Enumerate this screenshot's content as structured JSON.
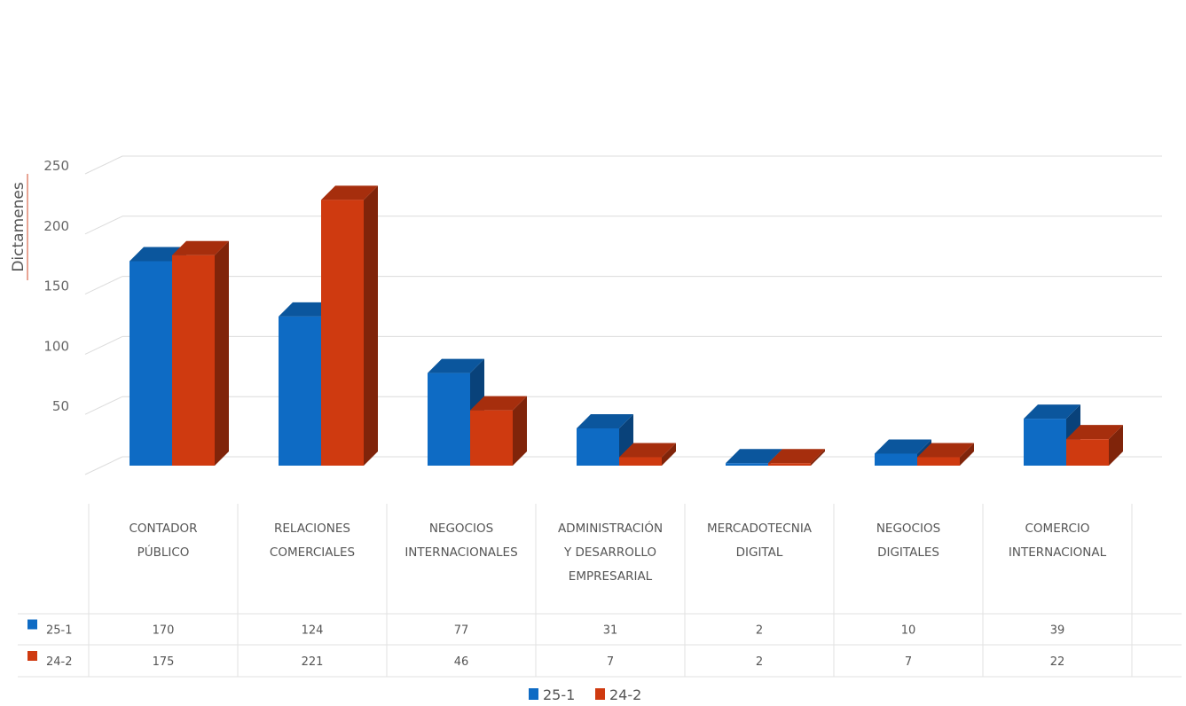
{
  "chart_data": {
    "type": "bar",
    "ylabel": "Dictamenes",
    "ylim": [
      0,
      250
    ],
    "yticks": [
      50,
      100,
      150,
      200,
      250
    ],
    "grid": true,
    "legend": "bottom",
    "categories": [
      [
        "CONTADOR",
        "PÚBLICO"
      ],
      [
        "RELACIONES",
        "COMERCIALES"
      ],
      [
        "NEGOCIOS",
        "INTERNACIONALES"
      ],
      [
        "ADMINISTRACIÓN",
        "Y DESARROLLO",
        "EMPRESARIAL"
      ],
      [
        "MERCADOTECNIA",
        "DIGITAL"
      ],
      [
        "NEGOCIOS",
        "DIGITALES"
      ],
      [
        "COMERCIO",
        "INTERNACIONAL"
      ]
    ],
    "series": [
      {
        "name": "25-1",
        "color": "#0e6bc4",
        "values": [
          170,
          124,
          77,
          31,
          2,
          10,
          39
        ]
      },
      {
        "name": "24-2",
        "color": "#cf3a10",
        "values": [
          175,
          221,
          46,
          7,
          2,
          7,
          22
        ]
      }
    ]
  }
}
